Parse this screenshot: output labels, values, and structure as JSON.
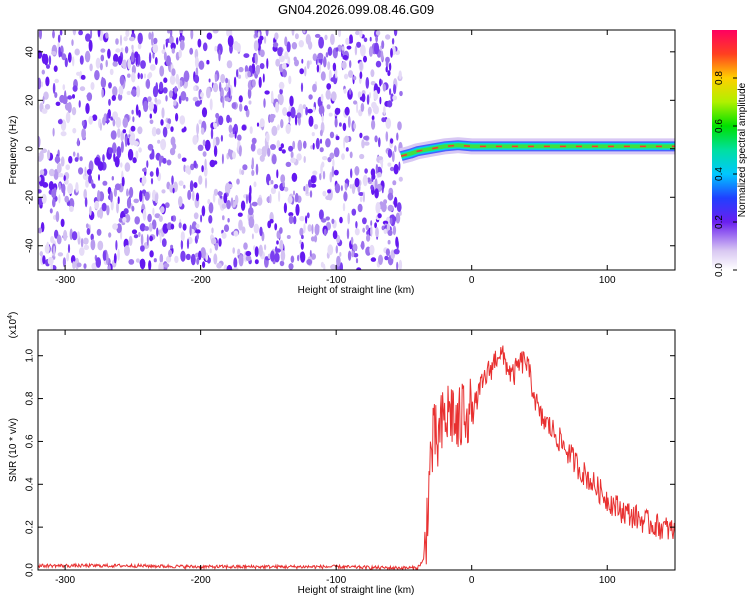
{
  "title": "GN04.2026.099.08.46.G09",
  "chart_data": [
    {
      "type": "heatmap",
      "xlabel": "Height of straight line (km)",
      "ylabel": "Frequency (Hz)",
      "xlim": [
        -320,
        150
      ],
      "ylim": [
        -50,
        49
      ],
      "xticks": [
        -300,
        -200,
        -100,
        0,
        100
      ],
      "xtick_labels": [
        "-300",
        "-200",
        "-100",
        "0",
        "100"
      ],
      "yticks": [
        -40,
        -20,
        0,
        20,
        40
      ],
      "ytick_labels": [
        "-40",
        "-20",
        "0",
        "20",
        "40"
      ],
      "colorbar": {
        "label": "Normalized spectral amplitude",
        "range": [
          0,
          1
        ],
        "ticks": [
          0.0,
          0.2,
          0.4,
          0.6,
          0.8
        ],
        "tick_labels": [
          "0.0",
          "0.2",
          "0.4",
          "0.6",
          "0.8"
        ]
      },
      "noise_region_x": [
        -320,
        -52
      ],
      "signal_ridge": [
        {
          "x": -52,
          "y": -3
        },
        {
          "x": -45,
          "y": -2
        },
        {
          "x": -40,
          "y": -1
        },
        {
          "x": -30,
          "y": 0
        },
        {
          "x": -20,
          "y": 1
        },
        {
          "x": -10,
          "y": 1.5
        },
        {
          "x": 0,
          "y": 1
        },
        {
          "x": 50,
          "y": 1
        },
        {
          "x": 100,
          "y": 1
        },
        {
          "x": 150,
          "y": 1
        }
      ]
    },
    {
      "type": "line",
      "xlabel": "Height of straight line (km)",
      "ylabel": "SNR (10 * v/v)",
      "scale_label": "(x10",
      "scale_exp": "4",
      "xlim": [
        -320,
        150
      ],
      "ylim": [
        0,
        1.12
      ],
      "xticks": [
        -300,
        -200,
        -100,
        0,
        100
      ],
      "xtick_labels": [
        "-300",
        "-200",
        "-100",
        "0",
        "100"
      ],
      "yticks": [
        0.0,
        0.2,
        0.4,
        0.6,
        0.8,
        1.0
      ],
      "ytick_labels": [
        "0.0",
        "0.2",
        "0.4",
        "0.6",
        "0.8",
        "1.0"
      ],
      "series": [
        {
          "color": "#e83030",
          "x": [
            -320,
            -300,
            -250,
            -200,
            -150,
            -100,
            -60,
            -40,
            -35,
            -32,
            -30,
            -28,
            -25,
            -20,
            -15,
            -10,
            -5,
            0,
            5,
            10,
            15,
            20,
            25,
            30,
            35,
            40,
            45,
            50,
            60,
            70,
            80,
            90,
            100,
            110,
            120,
            130,
            140,
            150
          ],
          "y": [
            0.02,
            0.02,
            0.02,
            0.015,
            0.015,
            0.015,
            0.01,
            0.01,
            0.05,
            0.35,
            0.55,
            0.6,
            0.6,
            0.7,
            0.75,
            0.65,
            0.78,
            0.72,
            0.82,
            0.9,
            0.95,
            1.02,
            0.97,
            0.9,
            0.96,
            0.98,
            0.85,
            0.72,
            0.65,
            0.56,
            0.47,
            0.4,
            0.33,
            0.28,
            0.25,
            0.22,
            0.2,
            0.18
          ]
        }
      ]
    }
  ]
}
